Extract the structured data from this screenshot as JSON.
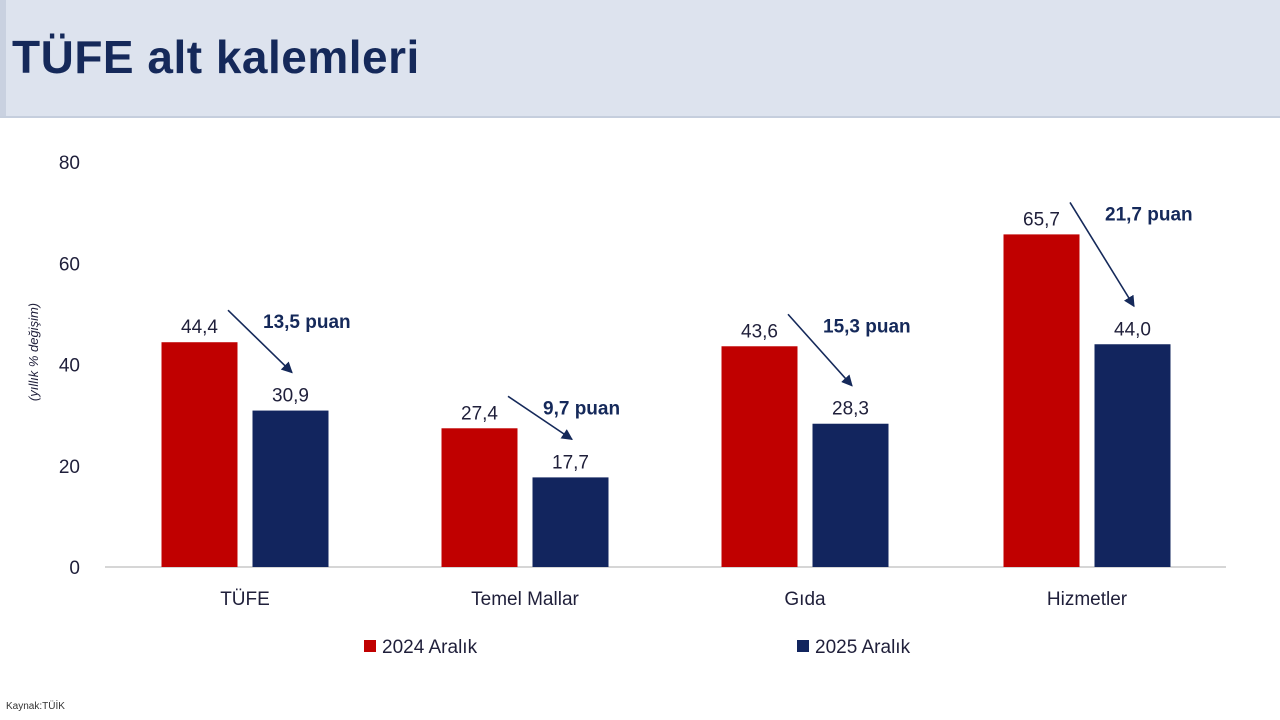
{
  "header": {
    "title": "TÜFE alt kalemleri"
  },
  "source": "Kaynak:TÜİK",
  "colors": {
    "header_bg": "#dde3ee",
    "title": "#15295a",
    "series_2024": "#c00000",
    "series_2025": "#12255e",
    "axis_text": "#1f1f3a",
    "annotation": "#15295a"
  },
  "chart_data": {
    "type": "bar",
    "categories": [
      "TÜFE",
      "Temel Mallar",
      "Gıda",
      "Hizmetler"
    ],
    "series": [
      {
        "name": "2024 Aralık",
        "values": [
          44.4,
          27.4,
          43.6,
          65.7
        ],
        "value_labels": [
          "44,4",
          "27,4",
          "43,6",
          "65,7"
        ]
      },
      {
        "name": "2025 Aralık",
        "values": [
          30.9,
          17.7,
          28.3,
          44.0
        ],
        "value_labels": [
          "30,9",
          "17,7",
          "28,3",
          "44,0"
        ]
      }
    ],
    "annotations": [
      "13,5 puan",
      "9,7 puan",
      "15,3 puan",
      "21,7 puan"
    ],
    "ylabel": "(yıllık % değişim)",
    "yticks": [
      0,
      20,
      40,
      60,
      80
    ],
    "ylim": [
      0,
      80
    ],
    "grid": false,
    "legend_position": "bottom"
  }
}
